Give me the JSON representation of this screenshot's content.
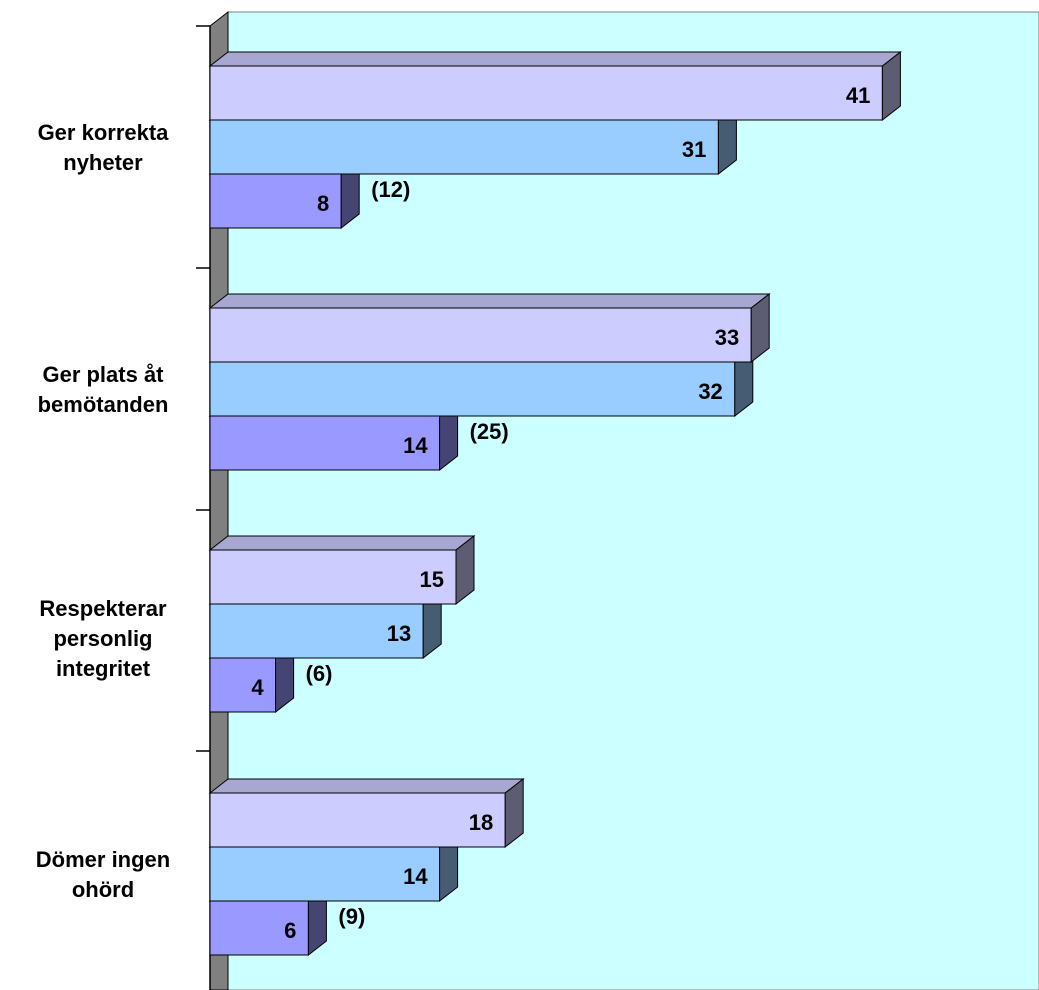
{
  "chart_data": {
    "type": "bar",
    "orientation": "horizontal",
    "three_d": true,
    "categories": [
      "Ger korrekta nyheter",
      "Ger plats åt bemötanden",
      "Respekterar personlig integritet",
      "Dömer ingen ohörd"
    ],
    "category_lines": [
      [
        "Ger korrekta",
        "nyheter"
      ],
      [
        "Ger plats åt",
        "bemötanden"
      ],
      [
        "Respekterar",
        "personlig",
        "integritet"
      ],
      [
        "Dömer ingen",
        "ohörd"
      ]
    ],
    "series": [
      {
        "values": [
          41,
          33,
          15,
          18
        ],
        "labels": [
          "41",
          "33",
          "15",
          "18"
        ],
        "color": "#ccccff"
      },
      {
        "values": [
          31,
          32,
          13,
          14
        ],
        "labels": [
          "31",
          "32",
          "13",
          "14"
        ],
        "color": "#99ccff"
      },
      {
        "values": [
          8,
          14,
          4,
          6
        ],
        "labels": [
          "8",
          "14",
          "4",
          "6"
        ],
        "color": "#9999ff"
      }
    ],
    "annotations": [
      "(12)",
      "(25)",
      "(6)",
      "(9)"
    ],
    "xlim": [
      0,
      50
    ],
    "grid": false,
    "legend": "none",
    "plot_background": "#ccffff",
    "wall_color": "#808080"
  }
}
